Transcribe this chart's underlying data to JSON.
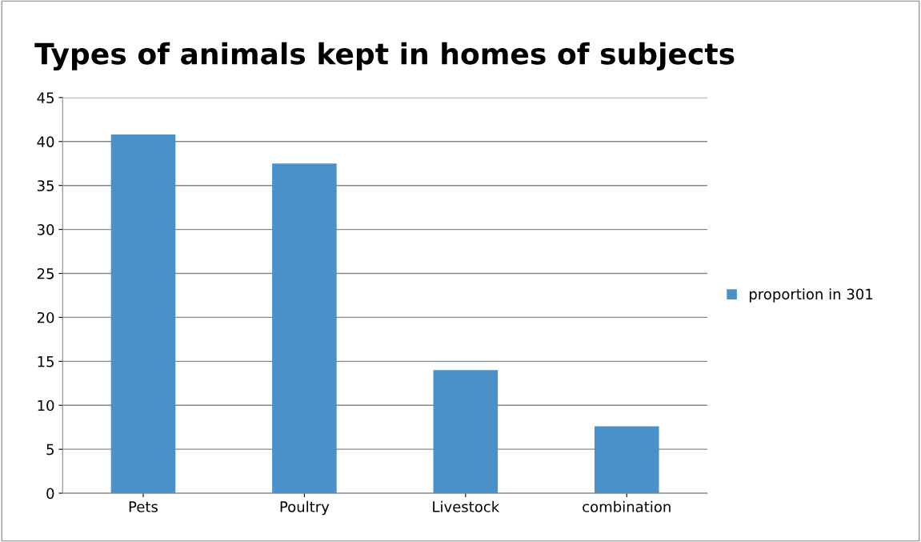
{
  "chart_data": {
    "type": "bar",
    "title": "Types of animals kept in homes of subjects",
    "categories": [
      "Pets",
      "Poultry",
      "Livestock",
      "combination"
    ],
    "series": [
      {
        "name": "proportion in 301",
        "color": "#4a90c9",
        "values": [
          40.8,
          37.5,
          14,
          7.6
        ]
      }
    ],
    "ylim": [
      0,
      45
    ],
    "yticks": [
      0,
      5,
      10,
      15,
      20,
      25,
      30,
      35,
      40,
      45
    ],
    "grid": "y",
    "legend": "right"
  }
}
